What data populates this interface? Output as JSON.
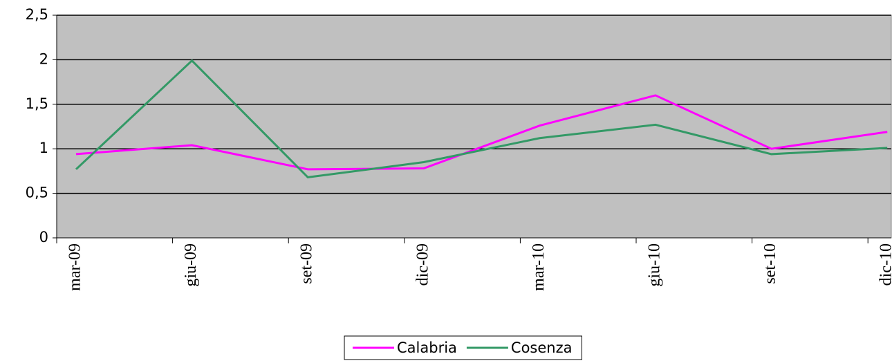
{
  "chart_data": {
    "type": "line",
    "categories": [
      "mar-09",
      "giu-09",
      "set-09",
      "dic-09",
      "mar-10",
      "giu-10",
      "set-10",
      "dic-10"
    ],
    "series": [
      {
        "name": "Calabria",
        "color": "#ff00ff",
        "values": [
          0.94,
          1.04,
          0.77,
          0.78,
          1.26,
          1.6,
          1.0,
          1.19
        ]
      },
      {
        "name": "Cosenza",
        "color": "#339966",
        "values": [
          0.77,
          1.99,
          0.68,
          0.85,
          1.12,
          1.27,
          0.94,
          1.01
        ]
      }
    ],
    "ylim": [
      0,
      2.5
    ],
    "yticks": [
      0,
      {
        "value": 0.5,
        "label": "0,5"
      },
      1,
      {
        "value": 1.5,
        "label": "1,5"
      },
      2,
      {
        "value": 2.5,
        "label": "2,5"
      }
    ],
    "grid": true,
    "legend": "bottom",
    "background": "#c0c0c0"
  }
}
